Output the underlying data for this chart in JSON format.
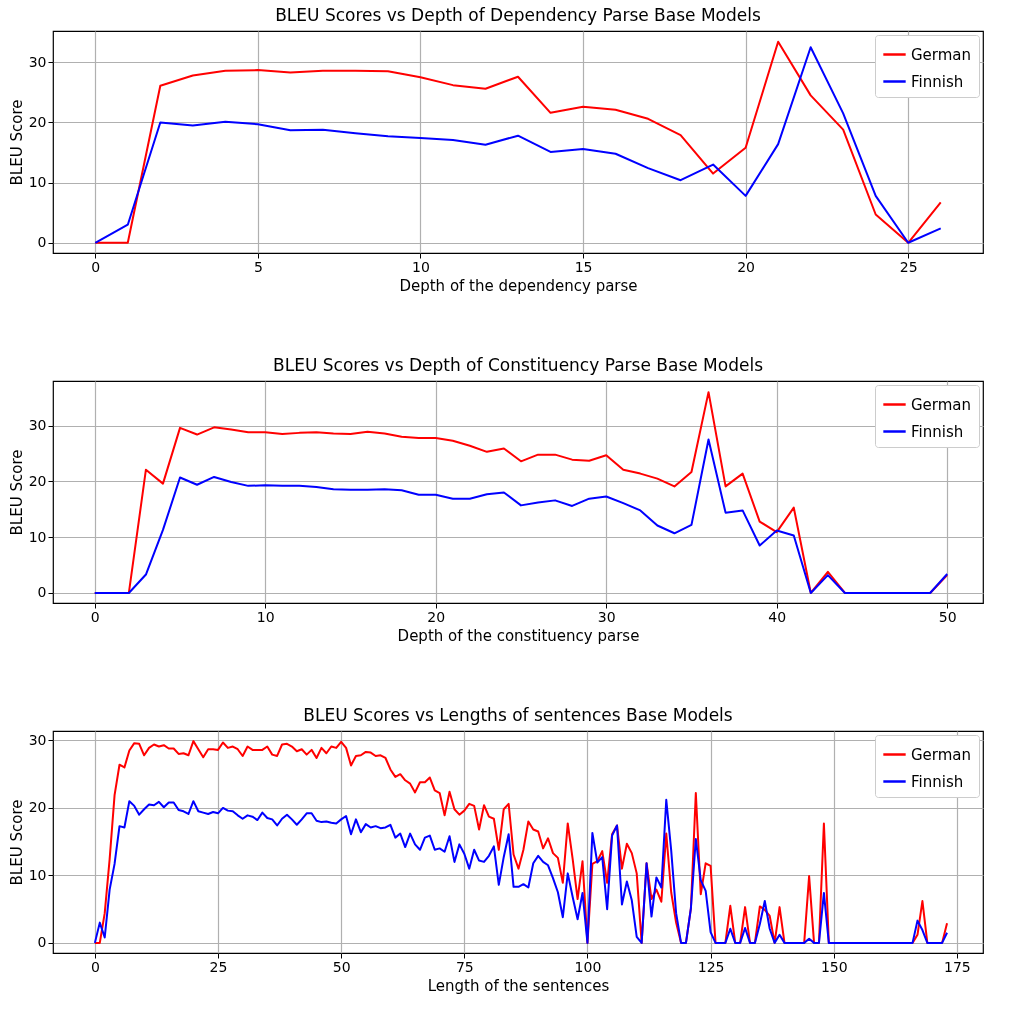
{
  "chart_data": [
    {
      "type": "line",
      "title": "BLEU Scores vs Depth of Dependency Parse Base Models",
      "xlabel": "Depth of the dependency parse",
      "ylabel": "BLEU Score",
      "x": [
        0,
        1,
        2,
        3,
        4,
        5,
        6,
        7,
        8,
        9,
        10,
        11,
        12,
        13,
        14,
        15,
        16,
        17,
        18,
        19,
        20,
        21,
        22,
        23,
        24,
        25,
        26
      ],
      "series": [
        {
          "name": "German",
          "color": "#ff0000",
          "values": [
            0,
            0,
            26.1,
            27.8,
            28.6,
            28.7,
            28.3,
            28.6,
            28.6,
            28.5,
            27.5,
            26.2,
            25.6,
            27.6,
            21.6,
            22.6,
            22.1,
            20.6,
            17.9,
            11.5,
            15.8,
            33.4,
            24.5,
            18.8,
            4.7,
            0,
            6.7
          ]
        },
        {
          "name": "Finnish",
          "color": "#0000ff",
          "values": [
            0,
            3,
            20,
            19.5,
            20.1,
            19.7,
            18.7,
            18.8,
            18.2,
            17.7,
            17.4,
            17.1,
            16.3,
            17.8,
            15.1,
            15.6,
            14.8,
            12.4,
            10.4,
            13,
            7.8,
            16.4,
            32.5,
            21.5,
            7.8,
            0,
            2.4
          ]
        }
      ],
      "xlim": [
        -1.3,
        27.3
      ],
      "ylim": [
        -1.7,
        35.2
      ],
      "xticks": [
        0,
        5,
        10,
        15,
        20,
        25
      ],
      "yticks": [
        0,
        10,
        20,
        30
      ],
      "grid": true,
      "legend": "top right"
    },
    {
      "type": "line",
      "title": "BLEU Scores vs Depth of Constituency Parse Base Models",
      "xlabel": "Depth of the constituency parse",
      "ylabel": "BLEU Score",
      "x": [
        0,
        1,
        2,
        3,
        4,
        5,
        6,
        7,
        8,
        9,
        10,
        11,
        12,
        13,
        14,
        15,
        16,
        17,
        18,
        19,
        20,
        21,
        22,
        23,
        24,
        25,
        26,
        27,
        28,
        29,
        30,
        31,
        32,
        33,
        34,
        35,
        36,
        37,
        38,
        39,
        40,
        41,
        42,
        43,
        44,
        45,
        46,
        47,
        48,
        49,
        50
      ],
      "series": [
        {
          "name": "German",
          "color": "#ff0000",
          "values": [
            0,
            0,
            0,
            22.1,
            19.6,
            29.6,
            28.4,
            29.7,
            29.3,
            28.8,
            28.8,
            28.5,
            28.7,
            28.8,
            28.6,
            28.5,
            28.9,
            28.6,
            28.0,
            27.8,
            27.8,
            27.3,
            26.4,
            25.3,
            25.9,
            23.6,
            24.8,
            24.8,
            23.9,
            23.7,
            24.7,
            22.1,
            21.4,
            20.5,
            19.1,
            21.7,
            36.0,
            19.1,
            21.4,
            12.8,
            10.9,
            15.3,
            0,
            3.8,
            0,
            0,
            0,
            0,
            0,
            0,
            3.2
          ]
        },
        {
          "name": "Finnish",
          "color": "#0000ff",
          "values": [
            0,
            0,
            0,
            3.3,
            11.3,
            20.7,
            19.4,
            20.8,
            19.9,
            19.2,
            19.3,
            19.2,
            19.2,
            19.0,
            18.6,
            18.5,
            18.5,
            18.6,
            18.4,
            17.6,
            17.6,
            16.9,
            16.9,
            17.7,
            18.0,
            15.7,
            16.2,
            16.6,
            15.6,
            16.9,
            17.3,
            16.1,
            14.8,
            12.1,
            10.7,
            12.2,
            27.5,
            14.4,
            14.8,
            8.5,
            11.2,
            10.3,
            0,
            3.2,
            0,
            0,
            0,
            0,
            0,
            0,
            3.4
          ]
        }
      ],
      "xlim": [
        -2.45,
        52.1
      ],
      "ylim": [
        -1.8,
        38.0
      ],
      "xticks": [
        0,
        10,
        20,
        30,
        40,
        50
      ],
      "yticks": [
        0,
        10,
        20,
        30
      ],
      "grid": true,
      "legend": "top right"
    },
    {
      "type": "line",
      "title": "BLEU Scores vs Lengths of sentences Base Models",
      "xlabel": "Length of the sentences",
      "ylabel": "BLEU Score",
      "x": [
        0,
        1,
        2,
        3,
        4,
        5,
        6,
        7,
        8,
        9,
        10,
        11,
        12,
        13,
        14,
        15,
        16,
        17,
        18,
        19,
        20,
        21,
        22,
        23,
        24,
        25,
        26,
        27,
        28,
        29,
        30,
        31,
        32,
        33,
        34,
        35,
        36,
        37,
        38,
        39,
        40,
        41,
        42,
        43,
        44,
        45,
        46,
        47,
        48,
        49,
        50,
        51,
        52,
        53,
        54,
        55,
        56,
        57,
        58,
        59,
        60,
        61,
        62,
        63,
        64,
        65,
        66,
        67,
        68,
        69,
        70,
        71,
        72,
        73,
        74,
        75,
        76,
        77,
        78,
        79,
        80,
        81,
        82,
        83,
        84,
        85,
        86,
        87,
        88,
        89,
        90,
        91,
        92,
        93,
        94,
        95,
        96,
        97,
        98,
        99,
        100,
        101,
        102,
        103,
        104,
        105,
        106,
        107,
        108,
        109,
        110,
        111,
        112,
        113,
        114,
        115,
        116,
        117,
        118,
        119,
        120,
        121,
        122,
        123,
        124,
        125,
        126,
        127,
        128,
        129,
        130,
        131,
        132,
        133,
        134,
        135,
        136,
        137,
        138,
        139,
        140,
        141,
        142,
        143,
        144,
        145,
        146,
        147,
        148,
        149,
        150,
        151,
        152,
        153,
        154,
        155,
        156,
        157,
        158,
        159,
        160,
        161,
        162,
        163,
        164,
        165,
        166,
        167,
        168,
        169,
        170,
        171,
        172,
        173
      ],
      "series": [
        {
          "name": "German",
          "color": "#ff0000",
          "values": [
            0,
            0,
            4.4,
            12.4,
            21.9,
            26.4,
            26,
            28.5,
            29.6,
            29.5,
            27.8,
            28.9,
            29.4,
            29.1,
            29.3,
            28.8,
            28.8,
            28,
            28.1,
            27.8,
            29.9,
            28.7,
            27.5,
            28.7,
            28.7,
            28.6,
            29.7,
            28.9,
            29.1,
            28.7,
            27.7,
            29.1,
            28.6,
            28.6,
            28.6,
            29.1,
            27.9,
            27.7,
            29.4,
            29.5,
            29.1,
            28.4,
            28.7,
            27.9,
            28.6,
            27.4,
            28.9,
            28.1,
            29.1,
            28.9,
            29.8,
            28.9,
            26.3,
            27.7,
            27.8,
            28.3,
            28.2,
            27.7,
            27.8,
            27.4,
            25.7,
            24.6,
            25,
            24.1,
            23.6,
            22.3,
            23.8,
            23.8,
            24.5,
            22.6,
            22.2,
            18.9,
            22.4,
            19.8,
            19,
            19.6,
            20.6,
            20.3,
            16.8,
            20.4,
            18.7,
            18.4,
            13.8,
            19.8,
            20.6,
            13.1,
            11,
            13.8,
            18,
            16.8,
            16.5,
            14,
            15.5,
            13.3,
            12.6,
            8.9,
            17.7,
            12.4,
            6.5,
            12.1,
            0,
            11.7,
            12.1,
            13.6,
            8.9,
            16.1,
            17.4,
            11,
            14.7,
            13.3,
            10.3,
            0,
            11.8,
            6.5,
            7.9,
            6.1,
            16.2,
            7.5,
            3,
            0,
            0,
            5.1,
            22.2,
            7.2,
            11.8,
            11.4,
            0,
            0,
            0,
            5.5,
            0,
            0,
            5.3,
            0,
            0,
            5.4,
            4.9,
            4,
            0,
            5.3,
            0,
            0,
            0,
            0,
            0,
            9.9,
            0,
            0,
            17.7,
            0,
            0,
            0,
            0,
            0,
            0,
            0,
            0,
            0,
            0,
            0,
            0,
            0,
            0,
            0,
            0,
            0,
            0,
            1.2,
            6.2,
            0,
            0,
            0,
            0,
            2.9
          ]
        },
        {
          "name": "Finnish",
          "color": "#0000ff",
          "values": [
            0,
            3,
            0.8,
            7.9,
            11.7,
            17.3,
            17.1,
            21,
            20.3,
            19,
            19.8,
            20.5,
            20.4,
            20.9,
            20.1,
            20.8,
            20.8,
            19.7,
            19.5,
            19.1,
            21,
            19.5,
            19.3,
            19.1,
            19.4,
            19.2,
            20,
            19.6,
            19.5,
            18.9,
            18.4,
            18.9,
            18.7,
            18.2,
            19.3,
            18.5,
            18.3,
            17.4,
            18.4,
            19,
            18.3,
            17.5,
            18.3,
            19.2,
            19.2,
            18.1,
            17.9,
            18,
            17.8,
            17.7,
            18.3,
            18.8,
            16.1,
            18.3,
            16.4,
            17.6,
            17.1,
            17.3,
            17,
            17.1,
            17.5,
            15.6,
            16.2,
            14.2,
            16.2,
            14.6,
            13.8,
            15.6,
            15.9,
            13.8,
            14,
            13.5,
            15.8,
            12,
            14.6,
            13.2,
            11,
            13.8,
            12.2,
            12,
            12.9,
            14.3,
            8.6,
            12.7,
            16.1,
            8.3,
            8.3,
            8.7,
            8.2,
            11.8,
            12.9,
            12,
            11.5,
            9.6,
            7.5,
            3.8,
            10.3,
            6.8,
            3.5,
            7.4,
            0,
            16.3,
            11.9,
            12.7,
            5,
            15.9,
            17.4,
            5.7,
            9.1,
            6.3,
            0.9,
            0,
            11.8,
            3.9,
            9.7,
            8.2,
            21.2,
            13.7,
            4.4,
            0,
            0,
            5.1,
            15.4,
            9.3,
            7.7,
            1.6,
            0,
            0,
            0,
            2.1,
            0,
            0,
            2.2,
            0,
            0,
            2.8,
            6.2,
            2.1,
            0,
            1.2,
            0,
            0,
            0,
            0,
            0,
            0.6,
            0,
            0,
            7.4,
            0,
            0,
            0,
            0,
            0,
            0,
            0,
            0,
            0,
            0,
            0,
            0,
            0,
            0,
            0,
            0,
            0,
            0,
            3.3,
            1.9,
            0,
            0,
            0,
            0,
            1.5
          ]
        }
      ],
      "xlim": [
        -8.5,
        180.3
      ],
      "ylim": [
        -1.5,
        31.4
      ],
      "xticks": [
        0,
        25,
        50,
        75,
        100,
        125,
        150,
        175
      ],
      "yticks": [
        0,
        10,
        20,
        30
      ],
      "grid": true,
      "legend": "top right"
    }
  ]
}
